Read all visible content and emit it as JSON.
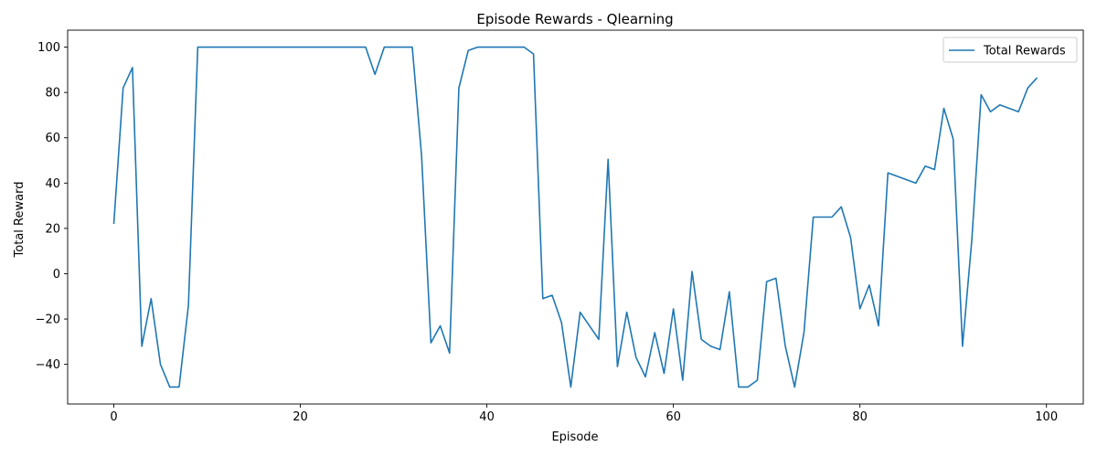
{
  "chart_data": {
    "type": "line",
    "title": "Episode Rewards - Qlearning",
    "xlabel": "Episode",
    "ylabel": "Total Reward",
    "xlim": [
      -4.95,
      103.95
    ],
    "ylim": [
      -57.5,
      107.5
    ],
    "xticks": [
      0,
      20,
      40,
      60,
      80,
      100
    ],
    "yticks": [
      -40,
      -20,
      0,
      20,
      40,
      60,
      80,
      100
    ],
    "grid": false,
    "legend_position": "top-right",
    "series": [
      {
        "name": "Total Rewards",
        "color": "#1f77b4",
        "x": [
          0,
          1,
          2,
          3,
          4,
          5,
          6,
          7,
          8,
          9,
          10,
          11,
          12,
          13,
          14,
          15,
          16,
          17,
          18,
          19,
          20,
          21,
          22,
          23,
          24,
          25,
          26,
          27,
          28,
          29,
          30,
          31,
          32,
          33,
          34,
          35,
          36,
          37,
          38,
          39,
          40,
          41,
          42,
          43,
          44,
          45,
          46,
          47,
          48,
          49,
          50,
          51,
          52,
          53,
          54,
          55,
          56,
          57,
          58,
          59,
          60,
          61,
          62,
          63,
          64,
          65,
          66,
          67,
          68,
          69,
          70,
          71,
          72,
          73,
          74,
          75,
          76,
          77,
          78,
          79,
          80,
          81,
          82,
          83,
          84,
          85,
          86,
          87,
          88,
          89,
          90,
          91,
          92,
          93,
          94,
          95,
          96,
          97,
          98,
          99
        ],
        "values": [
          22,
          82,
          91,
          -32,
          -11,
          -40,
          -50,
          -50,
          -14,
          100,
          100,
          100,
          100,
          100,
          100,
          100,
          100,
          100,
          100,
          100,
          100,
          100,
          100,
          100,
          100,
          100,
          100,
          100,
          88,
          100,
          100,
          100,
          100,
          52,
          -30.5,
          -23,
          -35,
          82,
          98.5,
          100,
          100,
          100,
          100,
          100,
          100,
          97,
          -11,
          -9.5,
          -21.5,
          -50,
          -17,
          -23,
          -29,
          50.5,
          -41,
          -17,
          -37,
          -45.5,
          -26,
          -44,
          -15.5,
          -47,
          1,
          -29,
          -32,
          -33.5,
          -8,
          -50,
          -50,
          -47,
          -3.5,
          -2,
          -32,
          -50,
          -26,
          25,
          25,
          25,
          29.5,
          16,
          -15.5,
          -5,
          -23,
          44.5,
          43,
          41.5,
          40,
          47.5,
          46,
          73,
          59.5,
          -32,
          15,
          79,
          71.5,
          74.5,
          73,
          71.5,
          82,
          86.5
        ]
      }
    ]
  }
}
